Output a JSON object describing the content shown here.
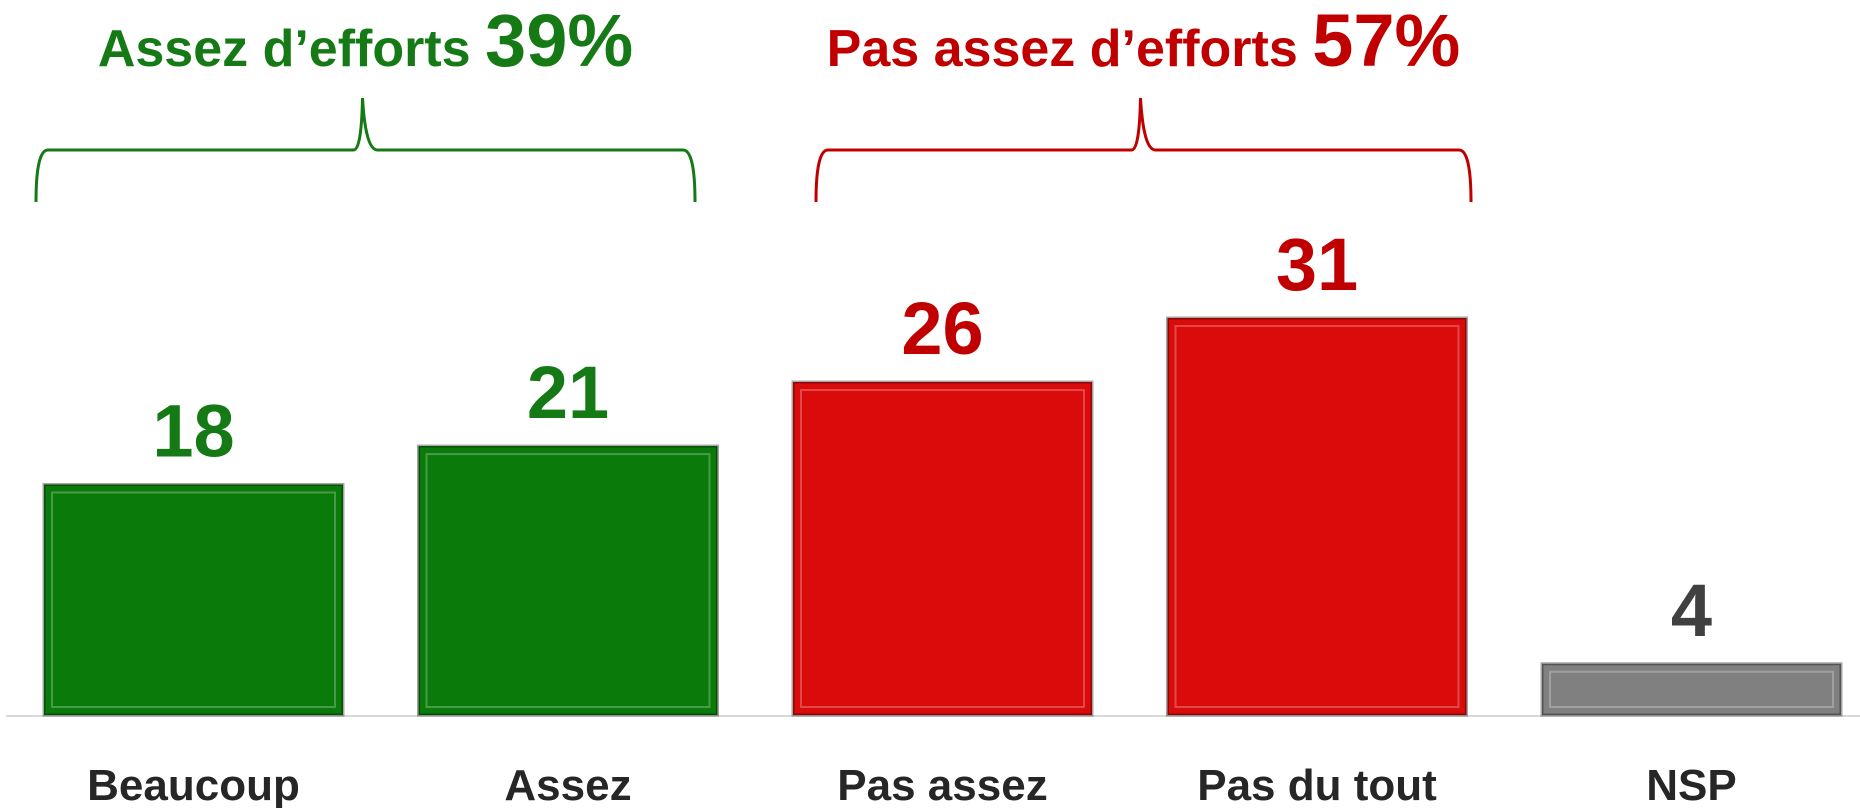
{
  "chart_data": {
    "type": "bar",
    "categories": [
      "Beaucoup",
      "Assez",
      "Pas assez",
      "Pas du tout",
      "NSP"
    ],
    "values": [
      18,
      21,
      26,
      31,
      4
    ],
    "colors": [
      "#0a7a0a",
      "#0a7a0a",
      "#d90b0b",
      "#d90b0b",
      "#808080"
    ],
    "label_colors": [
      "#157a15",
      "#157a15",
      "#c00000",
      "#c00000",
      "#404040"
    ],
    "groups": [
      {
        "label": "Assez d’efforts",
        "total": "39%",
        "color": "#157a15"
      },
      {
        "label": "Pas assez d’efforts",
        "total": "57%",
        "color": "#c00000"
      }
    ]
  }
}
